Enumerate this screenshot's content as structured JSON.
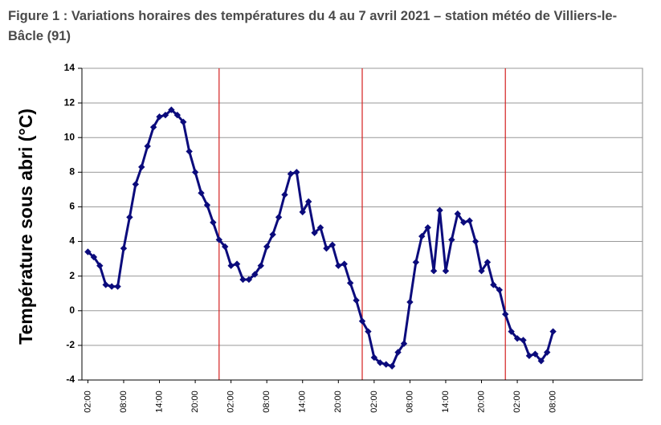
{
  "chart_data": {
    "type": "line",
    "title": "Figure 1 : Variations horaires des températures du 4 au 7 avril 2021 – station météo de Villiers-le-Bâcle (91)",
    "ylabel": "Température sous abri (°C)",
    "x": [
      2,
      3,
      4,
      5,
      6,
      7,
      8,
      9,
      10,
      11,
      12,
      13,
      14,
      15,
      16,
      17,
      18,
      19,
      20,
      21,
      22,
      23,
      24,
      25,
      26,
      27,
      28,
      29,
      30,
      31,
      32,
      33,
      34,
      35,
      36,
      37,
      38,
      39,
      40,
      41,
      42,
      43,
      44,
      45,
      46,
      47,
      48,
      49,
      50,
      51,
      52,
      53,
      54,
      55,
      56,
      57,
      58,
      59,
      60,
      61,
      62,
      63,
      64,
      65,
      66,
      67,
      68,
      69,
      70,
      71,
      72,
      73,
      74,
      75,
      76,
      77,
      78,
      79,
      80
    ],
    "series": [
      {
        "color": "#0b0b7c",
        "values": [
          3.4,
          3.1,
          2.6,
          1.5,
          1.4,
          1.4,
          3.6,
          5.4,
          7.3,
          8.3,
          9.5,
          10.6,
          11.2,
          11.3,
          11.6,
          11.3,
          10.9,
          9.2,
          8.0,
          6.8,
          6.1,
          5.1,
          4.1,
          3.7,
          2.6,
          2.7,
          1.8,
          1.8,
          2.1,
          2.6,
          3.7,
          4.4,
          5.4,
          6.7,
          7.9,
          8.0,
          5.7,
          6.3,
          4.5,
          4.8,
          3.6,
          3.8,
          2.6,
          2.7,
          1.6,
          0.6,
          -0.6,
          -1.2,
          -2.7,
          -3.0,
          -3.1,
          -3.2,
          -2.4,
          -1.9,
          0.5,
          2.8,
          4.3,
          4.8,
          2.3,
          5.8,
          2.3,
          4.1,
          5.6,
          5.1,
          5.2,
          4.0,
          2.3,
          2.8,
          1.5,
          1.2,
          -0.2,
          -1.2,
          -1.6,
          -1.7,
          -2.6,
          -2.5,
          -2.9,
          -2.4,
          -1.2
        ]
      }
    ],
    "xlim": [
      1,
      95
    ],
    "xticks": [
      {
        "value": 2,
        "label": "02:00"
      },
      {
        "value": 8,
        "label": "08:00"
      },
      {
        "value": 14,
        "label": "14:00"
      },
      {
        "value": 20,
        "label": "20:00"
      },
      {
        "value": 26,
        "label": "02:00"
      },
      {
        "value": 32,
        "label": "08:00"
      },
      {
        "value": 38,
        "label": "14:00"
      },
      {
        "value": 44,
        "label": "20:00"
      },
      {
        "value": 50,
        "label": "02:00"
      },
      {
        "value": 56,
        "label": "08:00"
      },
      {
        "value": 62,
        "label": "14:00"
      },
      {
        "value": 68,
        "label": "20:00"
      },
      {
        "value": 74,
        "label": "02:00"
      },
      {
        "value": 80,
        "label": "08:00"
      }
    ],
    "ylim": [
      -4,
      14
    ],
    "yticks": [
      -4,
      -2,
      0,
      2,
      4,
      6,
      8,
      10,
      12,
      14
    ],
    "vlines": [
      24,
      48,
      72
    ],
    "vline_color": "#d42020",
    "grid": true
  }
}
